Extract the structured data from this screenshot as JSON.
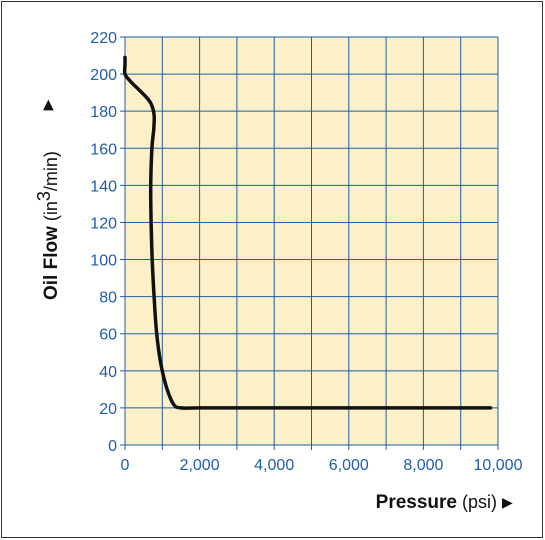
{
  "chart_data": {
    "type": "line",
    "title": "",
    "xlabel": {
      "bold": "Pressure",
      "unit": " (psi)",
      "arrow": "▶"
    },
    "ylabel": {
      "bold": "Oil Flow",
      "unit_pre": " (in",
      "unit_sup": "3",
      "unit_post": "/min)",
      "arrow": "▶"
    },
    "xlim": [
      0,
      10000
    ],
    "ylim": [
      0,
      220
    ],
    "x_ticks": [
      0,
      1000,
      2000,
      3000,
      4000,
      5000,
      6000,
      7000,
      8000,
      9000,
      10000
    ],
    "x_tick_labels": [
      "0",
      "",
      "2,000",
      "",
      "4,000",
      "",
      "6,000",
      "",
      "8,000",
      "",
      "10,000"
    ],
    "y_ticks": [
      0,
      20,
      40,
      60,
      80,
      100,
      120,
      140,
      160,
      180,
      200,
      220
    ],
    "y_tick_labels": [
      "0",
      "20",
      "40",
      "60",
      "80",
      "100",
      "120",
      "140",
      "160",
      "180",
      "200",
      "220"
    ],
    "grid": true,
    "series": [
      {
        "x": [
          0,
          0,
          0,
          150,
          350,
          550,
          700,
          780,
          770,
          720,
          690,
          700,
          730,
          780,
          850,
          950,
          1100,
          1300,
          1500,
          2000,
          4000,
          6000,
          8000,
          9800
        ],
        "y": [
          209,
          205,
          200,
          196,
          192,
          188,
          184,
          178,
          170,
          160,
          140,
          120,
          100,
          80,
          60,
          45,
          32,
          22,
          20,
          20,
          20,
          20,
          20,
          20
        ]
      }
    ],
    "colors": {
      "plot_bg": "#fcf0c8",
      "grid": "#1f5ea8",
      "tick_text": "#1f5ea8",
      "line": "#111111"
    }
  }
}
